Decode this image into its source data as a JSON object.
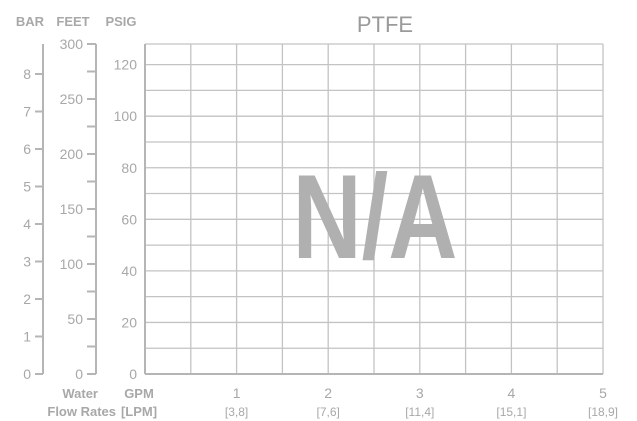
{
  "chart_data": {
    "type": "line",
    "title": "PTFE",
    "overlay_text": "N/A",
    "series": [],
    "axes": {
      "bar": {
        "label": "BAR",
        "ticks": [
          0,
          1,
          2,
          3,
          4,
          5,
          6,
          7,
          8
        ],
        "range": [
          0,
          8.8
        ]
      },
      "feet": {
        "label": "FEET",
        "ticks": [
          0,
          50,
          100,
          150,
          200,
          250,
          300
        ],
        "range": [
          0,
          300
        ]
      },
      "psig": {
        "label": "PSIG",
        "ticks": [
          0,
          20,
          40,
          60,
          80,
          100,
          120
        ],
        "range": [
          0,
          128
        ]
      },
      "gpm": {
        "label": "GPM",
        "ticks": [
          1,
          2,
          3,
          4,
          5
        ],
        "range": [
          0,
          5
        ]
      },
      "lpm": {
        "label": "[LPM]",
        "ticks": [
          "[3,8]",
          "[7,6]",
          "[11,4]",
          "[15,1]",
          "[18,9]"
        ]
      }
    },
    "xlabel": [
      "Water",
      "Flow Rates"
    ],
    "grid": true
  }
}
